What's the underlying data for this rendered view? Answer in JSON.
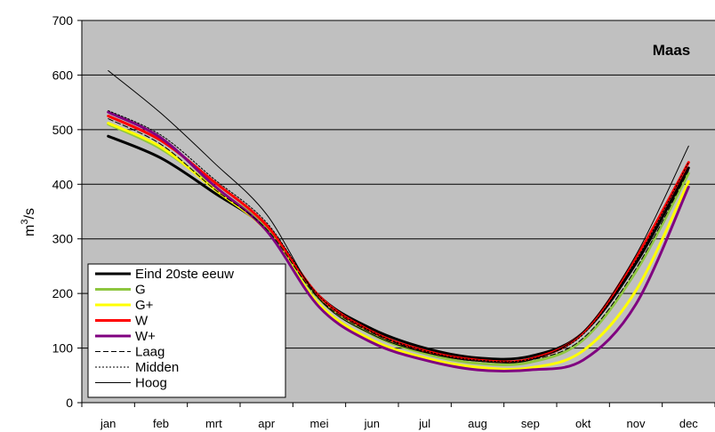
{
  "chart_data": {
    "type": "line",
    "title": "Maas",
    "ylabel": "m³/s",
    "ylabel_base": "m",
    "ylabel_sup": "3",
    "ylabel_rest": "/s",
    "categories": [
      "jan",
      "feb",
      "mrt",
      "apr",
      "mei",
      "jun",
      "jul",
      "aug",
      "sep",
      "okt",
      "nov",
      "dec"
    ],
    "ylim": [
      0,
      700
    ],
    "yticks": [
      0,
      100,
      200,
      300,
      400,
      500,
      600,
      700
    ],
    "grid": true,
    "legend_position": "bottom-left",
    "plot_background": "#c0c0c0",
    "series": [
      {
        "name": "Eind 20ste eeuw",
        "color": "#000000",
        "style": "solid",
        "width": 3,
        "values": [
          488,
          448,
          385,
          318,
          195,
          135,
          100,
          82,
          85,
          128,
          255,
          430
        ]
      },
      {
        "name": "G",
        "color": "#8ec63f",
        "style": "solid",
        "width": 3,
        "values": [
          510,
          465,
          395,
          320,
          190,
          125,
          90,
          72,
          74,
          115,
          240,
          420
        ]
      },
      {
        "name": "G+",
        "color": "#ffff00",
        "style": "solid",
        "width": 3,
        "values": [
          512,
          468,
          392,
          315,
          180,
          115,
          82,
          65,
          64,
          95,
          205,
          405
        ]
      },
      {
        "name": "W",
        "color": "#ff0000",
        "style": "solid",
        "width": 3,
        "values": [
          525,
          480,
          405,
          325,
          195,
          130,
          95,
          78,
          80,
          128,
          265,
          440
        ]
      },
      {
        "name": "W+",
        "color": "#800080",
        "style": "solid",
        "width": 3,
        "values": [
          532,
          485,
          398,
          315,
          175,
          110,
          78,
          60,
          60,
          78,
          180,
          395
        ]
      },
      {
        "name": "Laag",
        "color": "#000000",
        "style": "dashed",
        "width": 1,
        "values": [
          520,
          473,
          392,
          318,
          190,
          128,
          93,
          76,
          78,
          118,
          245,
          425
        ]
      },
      {
        "name": "Midden",
        "color": "#000000",
        "style": "dotted",
        "width": 1,
        "values": [
          535,
          490,
          410,
          330,
          195,
          130,
          95,
          78,
          80,
          125,
          260,
          440
        ]
      },
      {
        "name": "Hoog",
        "color": "#000000",
        "style": "solid",
        "width": 1,
        "values": [
          608,
          530,
          440,
          345,
          190,
          125,
          92,
          76,
          78,
          130,
          270,
          470
        ]
      }
    ]
  }
}
